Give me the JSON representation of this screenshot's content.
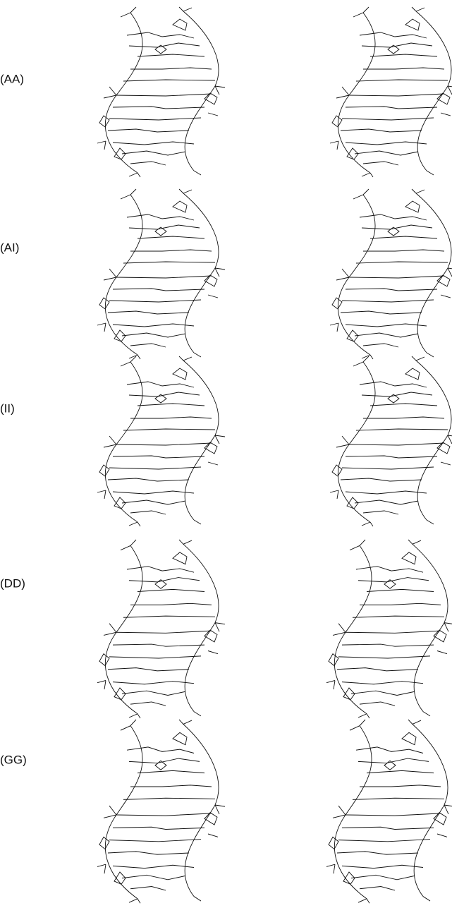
{
  "panels": [
    {
      "label": "(AA)"
    },
    {
      "label": "(AI)"
    },
    {
      "label": "(II)"
    },
    {
      "label": "(DD)"
    },
    {
      "label": "(GG)"
    }
  ]
}
